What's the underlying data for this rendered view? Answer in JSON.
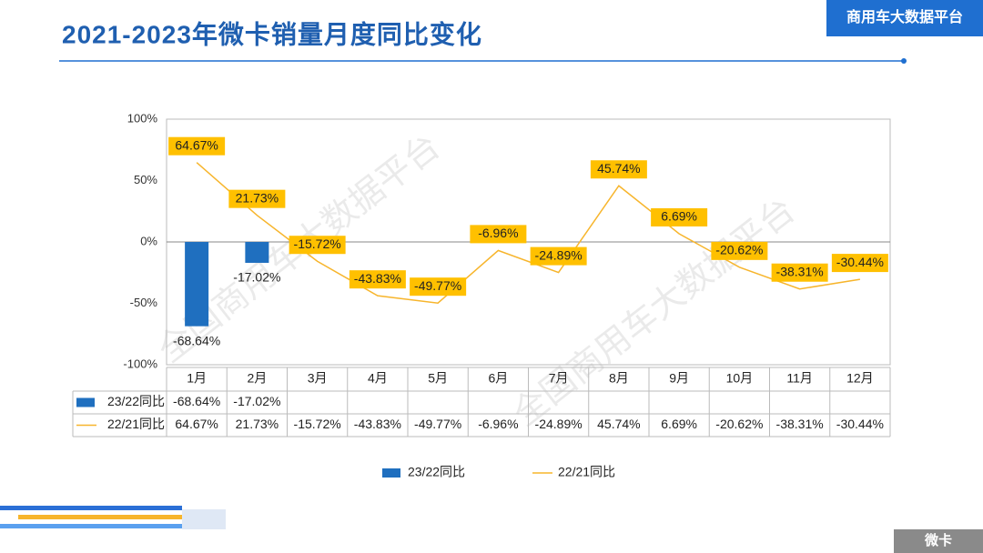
{
  "header": {
    "title": "2021-2023年微卡销量月度同比变化",
    "badge": "商用车大数据平台"
  },
  "footer": {
    "badge": "微卡"
  },
  "chart_data": {
    "type": "bar",
    "watermark": "全国商用车大数据平台",
    "categories": [
      "1月",
      "2月",
      "3月",
      "4月",
      "5月",
      "6月",
      "7月",
      "8月",
      "9月",
      "10月",
      "11月",
      "12月"
    ],
    "series": [
      {
        "name": "23/22同比",
        "type": "bar",
        "color": "#1f6fbf",
        "values": [
          -68.64,
          -17.02,
          null,
          null,
          null,
          null,
          null,
          null,
          null,
          null,
          null,
          null
        ],
        "value_labels": [
          "-68.64%",
          "-17.02%",
          null,
          null,
          null,
          null,
          null,
          null,
          null,
          null,
          null,
          null
        ]
      },
      {
        "name": "22/21同比",
        "type": "line",
        "color": "#f7b52c",
        "values": [
          64.67,
          21.73,
          -15.72,
          -43.83,
          -49.77,
          -6.96,
          -24.89,
          45.74,
          6.69,
          -20.62,
          -38.31,
          -30.44
        ],
        "value_labels": [
          "64.67%",
          "21.73%",
          "-15.72%",
          "-43.83%",
          "-49.77%",
          "-6.96%",
          "-24.89%",
          "45.74%",
          "6.69%",
          "-20.62%",
          "-38.31%",
          "-30.44%"
        ]
      }
    ],
    "ylim": [
      -100,
      100
    ],
    "yticks": [
      {
        "value": -100,
        "label": "-100%"
      },
      {
        "value": -50,
        "label": "-50%"
      },
      {
        "value": 0,
        "label": "0%"
      },
      {
        "value": 50,
        "label": "50%"
      },
      {
        "value": 100,
        "label": "100%"
      }
    ],
    "grid": false
  }
}
